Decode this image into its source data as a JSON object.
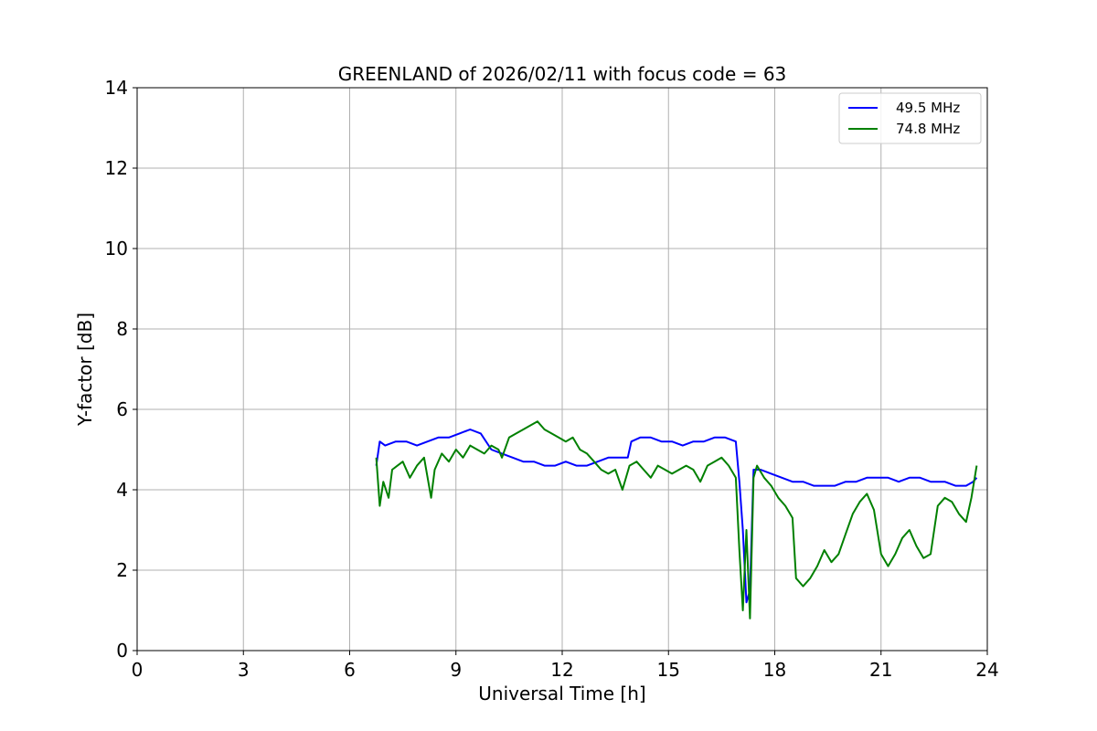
{
  "chart_data": {
    "type": "line",
    "title": "GREENLAND of 2026/02/11 with focus code = 63",
    "xlabel": "Universal Time [h]",
    "ylabel": "Y-factor [dB]",
    "xlim": [
      0,
      24
    ],
    "ylim": [
      0,
      14
    ],
    "xticks": [
      0,
      3,
      6,
      9,
      12,
      15,
      18,
      21,
      24
    ],
    "yticks": [
      0,
      2,
      4,
      6,
      8,
      10,
      12,
      14
    ],
    "grid": true,
    "legend_position": "top-right",
    "series": [
      {
        "name": "49.5 MHz",
        "color": "#0000ff",
        "x": [
          6.75,
          6.85,
          7.0,
          7.3,
          7.6,
          7.9,
          8.2,
          8.5,
          8.8,
          9.1,
          9.4,
          9.7,
          10.0,
          10.3,
          10.6,
          10.9,
          11.2,
          11.5,
          11.8,
          12.1,
          12.4,
          12.7,
          13.0,
          13.3,
          13.6,
          13.85,
          13.95,
          14.2,
          14.5,
          14.8,
          15.1,
          15.4,
          15.7,
          16.0,
          16.3,
          16.6,
          16.9,
          17.0,
          17.1,
          17.2,
          17.3,
          17.4,
          17.6,
          17.9,
          18.2,
          18.5,
          18.8,
          19.1,
          19.4,
          19.7,
          20.0,
          20.3,
          20.6,
          20.9,
          21.2,
          21.5,
          21.8,
          22.1,
          22.4,
          22.6,
          22.8,
          23.1,
          23.4,
          23.6,
          23.7
        ],
        "y": [
          4.6,
          5.2,
          5.1,
          5.2,
          5.2,
          5.1,
          5.2,
          5.3,
          5.3,
          5.4,
          5.5,
          5.4,
          5.0,
          4.9,
          4.8,
          4.7,
          4.7,
          4.6,
          4.6,
          4.7,
          4.6,
          4.6,
          4.7,
          4.8,
          4.8,
          4.8,
          5.2,
          5.3,
          5.3,
          5.2,
          5.2,
          5.1,
          5.2,
          5.2,
          5.3,
          5.3,
          5.2,
          4.2,
          3.0,
          1.2,
          1.5,
          4.5,
          4.5,
          4.4,
          4.3,
          4.2,
          4.2,
          4.1,
          4.1,
          4.1,
          4.2,
          4.2,
          4.3,
          4.3,
          4.3,
          4.2,
          4.3,
          4.3,
          4.2,
          4.2,
          4.2,
          4.1,
          4.1,
          4.2,
          4.3
        ]
      },
      {
        "name": "74.8 MHz",
        "color": "#008000",
        "x": [
          6.75,
          6.85,
          6.95,
          7.1,
          7.2,
          7.35,
          7.5,
          7.7,
          7.9,
          8.1,
          8.3,
          8.4,
          8.6,
          8.8,
          9.0,
          9.2,
          9.4,
          9.6,
          9.8,
          10.0,
          10.2,
          10.3,
          10.5,
          10.7,
          10.9,
          11.1,
          11.3,
          11.5,
          11.7,
          11.9,
          12.1,
          12.3,
          12.5,
          12.7,
          12.9,
          13.1,
          13.3,
          13.5,
          13.7,
          13.9,
          14.1,
          14.3,
          14.5,
          14.7,
          14.9,
          15.1,
          15.3,
          15.5,
          15.7,
          15.9,
          16.1,
          16.3,
          16.5,
          16.7,
          16.9,
          17.0,
          17.1,
          17.2,
          17.3,
          17.4,
          17.5,
          17.7,
          17.9,
          18.1,
          18.3,
          18.5,
          18.6,
          18.8,
          19.0,
          19.2,
          19.4,
          19.6,
          19.8,
          20.0,
          20.2,
          20.4,
          20.6,
          20.8,
          21.0,
          21.2,
          21.4,
          21.6,
          21.8,
          22.0,
          22.2,
          22.4,
          22.6,
          22.8,
          23.0,
          23.2,
          23.4,
          23.55,
          23.7
        ],
        "y": [
          4.8,
          3.6,
          4.2,
          3.8,
          4.5,
          4.6,
          4.7,
          4.3,
          4.6,
          4.8,
          3.8,
          4.5,
          4.9,
          4.7,
          5.0,
          4.8,
          5.1,
          5.0,
          4.9,
          5.1,
          5.0,
          4.8,
          5.3,
          5.4,
          5.5,
          5.6,
          5.7,
          5.5,
          5.4,
          5.3,
          5.2,
          5.3,
          5.0,
          4.9,
          4.7,
          4.5,
          4.4,
          4.5,
          4.0,
          4.6,
          4.7,
          4.5,
          4.3,
          4.6,
          4.5,
          4.4,
          4.5,
          4.6,
          4.5,
          4.2,
          4.6,
          4.7,
          4.8,
          4.6,
          4.3,
          2.5,
          1.0,
          3.0,
          0.8,
          4.3,
          4.6,
          4.3,
          4.1,
          3.8,
          3.6,
          3.3,
          1.8,
          1.6,
          1.8,
          2.1,
          2.5,
          2.2,
          2.4,
          2.9,
          3.4,
          3.7,
          3.9,
          3.5,
          2.4,
          2.1,
          2.4,
          2.8,
          3.0,
          2.6,
          2.3,
          2.4,
          3.6,
          3.8,
          3.7,
          3.4,
          3.2,
          3.8,
          4.6
        ]
      }
    ]
  }
}
